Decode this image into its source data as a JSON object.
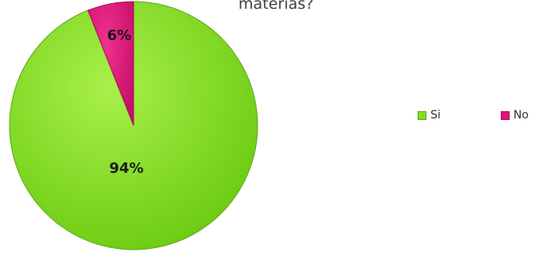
{
  "chart_data": {
    "type": "pie",
    "title": "materias?",
    "categories": [
      "Si",
      "No"
    ],
    "values": [
      94,
      6
    ],
    "data_labels": [
      "94%",
      "6%"
    ],
    "colors": [
      "#7FE21E",
      "#E0157A"
    ],
    "legend_position": "right"
  }
}
